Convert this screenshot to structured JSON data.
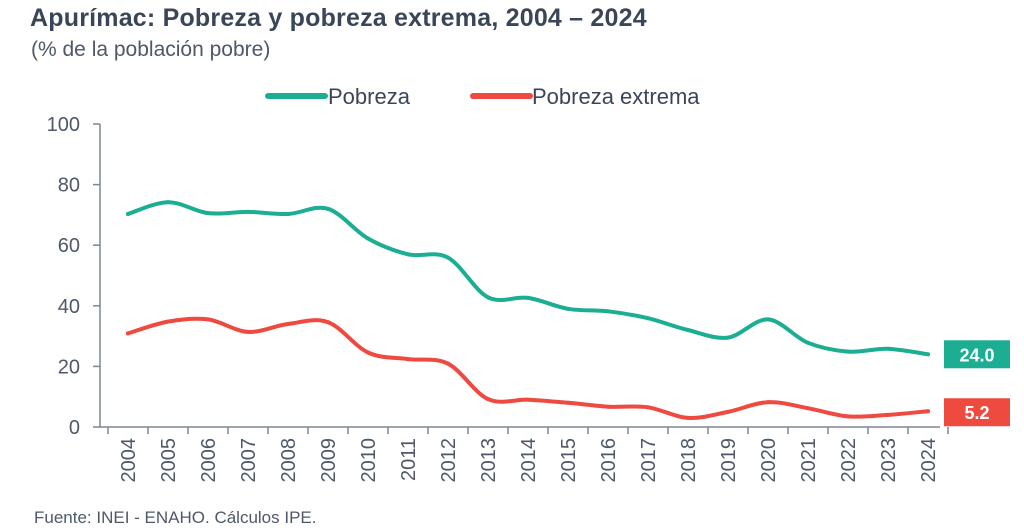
{
  "title": "Apurímac: Pobreza y pobreza extrema, 2004 – 2024",
  "subtitle": "(% de la población pobre)",
  "source": "Fuente: INEI - ENAHO. Cálculos IPE.",
  "colors": {
    "pobreza": "#1cae93",
    "extrema": "#ee4a40",
    "axis": "#7b8594",
    "text": "#4e5868"
  },
  "chart_data": {
    "type": "line",
    "title": "Apurímac: Pobreza y pobreza extrema, 2004 – 2024",
    "subtitle": "(% de la población pobre)",
    "xlabel": "",
    "ylabel": "",
    "ylim": [
      0,
      100
    ],
    "yticks": [
      "0",
      "20",
      "40",
      "60",
      "80",
      "100"
    ],
    "grid": false,
    "legend_position": "top-center",
    "categories": [
      "2004",
      "2005",
      "2006",
      "2007",
      "2008",
      "2009",
      "2010",
      "2011",
      "2012",
      "2013",
      "2014",
      "2015",
      "2016",
      "2017",
      "2018",
      "2019",
      "2020",
      "2021",
      "2022",
      "2023",
      "2024"
    ],
    "series": [
      {
        "name": "Pobreza",
        "color": "#1cae93",
        "values": [
          70.3,
          74.2,
          70.6,
          71.0,
          70.3,
          72.0,
          62.2,
          57.0,
          55.9,
          42.8,
          42.6,
          39.0,
          38.2,
          35.9,
          32.0,
          29.5,
          35.5,
          27.8,
          24.9,
          25.8,
          24.0
        ],
        "end_label": "24.0"
      },
      {
        "name": "Pobreza extrema",
        "color": "#ee4a40",
        "values": [
          30.9,
          34.8,
          35.5,
          31.4,
          34.0,
          34.6,
          24.6,
          22.4,
          20.9,
          9.2,
          9.0,
          8.0,
          6.7,
          6.5,
          3.0,
          5.0,
          8.2,
          6.2,
          3.5,
          4.0,
          5.2
        ],
        "end_label": "5.2"
      }
    ]
  }
}
